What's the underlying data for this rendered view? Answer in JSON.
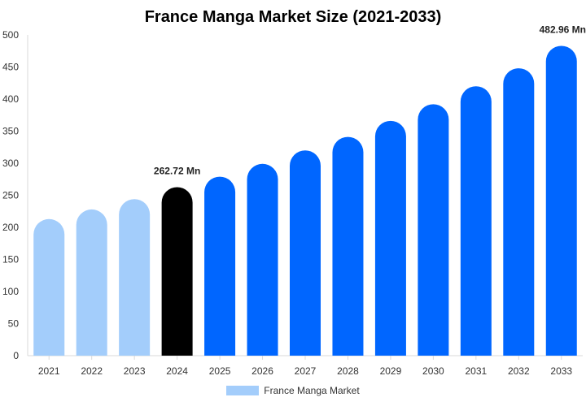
{
  "chart_data": {
    "type": "bar",
    "title": "France Manga Market Size (2021-2033)",
    "xlabel": "",
    "ylabel": "",
    "categories": [
      "2021",
      "2022",
      "2023",
      "2024",
      "2025",
      "2026",
      "2027",
      "2028",
      "2029",
      "2030",
      "2031",
      "2032",
      "2033"
    ],
    "series": [
      {
        "name": "France Manga Market",
        "values": [
          213,
          228,
          244,
          262.72,
          279,
          299,
          320,
          341,
          366,
          392,
          420,
          448,
          482.96
        ]
      }
    ],
    "ylim": [
      0,
      500
    ],
    "yticks": [
      0,
      50,
      100,
      150,
      200,
      250,
      300,
      350,
      400,
      450,
      500
    ],
    "grid": false,
    "legend_position": "bottom",
    "data_labels": [
      {
        "category": "2024",
        "text": "262.72 Mn"
      },
      {
        "category": "2033",
        "text": "482.96 Mn"
      }
    ],
    "colors": {
      "historic": "#a3cdfb",
      "base_year": "#000000",
      "forecast": "#0066ff",
      "legend": "#a3cdfb"
    },
    "bar_colors": [
      "historic",
      "historic",
      "historic",
      "base_year",
      "forecast",
      "forecast",
      "forecast",
      "forecast",
      "forecast",
      "forecast",
      "forecast",
      "forecast",
      "forecast"
    ]
  }
}
